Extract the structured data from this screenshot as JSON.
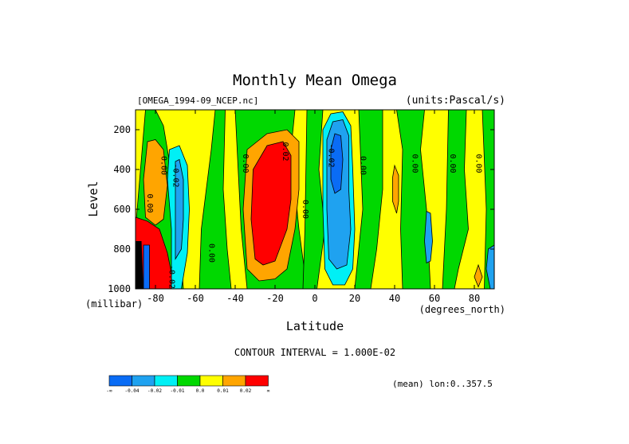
{
  "chart_data": {
    "type": "heatmap",
    "title": "Monthly Mean Omega",
    "dataset_label": "[OMEGA_1994-09_NCEP.nc]",
    "units_label": "(units:Pascal/s)",
    "xlabel": "Latitude",
    "x_units": "(degrees_north)",
    "ylabel": "Level",
    "y_units": "(millibar)",
    "xlim": [
      -90,
      90
    ],
    "ylim": [
      1000,
      100
    ],
    "x_ticks": [
      -80,
      -60,
      -40,
      -20,
      0,
      20,
      40,
      60,
      80
    ],
    "x_tick_labels": [
      "-80",
      "-60",
      "-40",
      "-20",
      "0",
      "20",
      "40",
      "60",
      "80"
    ],
    "y_ticks": [
      200,
      400,
      600,
      800,
      1000
    ],
    "y_tick_labels": [
      "200",
      "400",
      "600",
      "800",
      "1000"
    ],
    "contour_interval_text": "CONTOUR INTERVAL = 1.000E-02",
    "mean_text": "(mean) lon:0..357.5",
    "colorbar": {
      "colors": [
        "#0a6cf5",
        "#1fa2f0",
        "#00f0f5",
        "#00d800",
        "#ffff00",
        "#ffa500",
        "#ff0000"
      ],
      "labels": [
        "-∞",
        "-0.04",
        "-0.02",
        "-0.01",
        "0.0",
        "0.01",
        "0.02",
        "∞"
      ]
    },
    "contour_labels": [
      {
        "text": "0.00",
        "lat": -77,
        "lev": 380
      },
      {
        "text": "0.00",
        "lat": -84,
        "lev": 570
      },
      {
        "text": "-0.02",
        "lat": -71,
        "lev": 430
      },
      {
        "text": "0.00",
        "lat": -53,
        "lev": 820
      },
      {
        "text": "-0.02",
        "lat": -73,
        "lev": 940
      },
      {
        "text": "0.00",
        "lat": -36,
        "lev": 370
      },
      {
        "text": "0.02",
        "lat": -16,
        "lev": 310
      },
      {
        "text": "0.00",
        "lat": -6,
        "lev": 600
      },
      {
        "text": "-0.02",
        "lat": 7,
        "lev": 330
      },
      {
        "text": "0.00",
        "lat": 23,
        "lev": 380
      },
      {
        "text": "0.00",
        "lat": 49,
        "lev": 370
      },
      {
        "text": "0.00",
        "lat": 68,
        "lev": 370
      },
      {
        "text": "0.00",
        "lat": 81,
        "lev": 370
      }
    ],
    "regions": [
      {
        "level": 4,
        "points": [
          [
            -90,
            100
          ],
          [
            -84,
            100
          ],
          [
            -84,
            1000
          ],
          [
            -90,
            1000
          ]
        ]
      },
      {
        "level": 4,
        "points": [
          [
            -90,
            650
          ],
          [
            -83,
            680
          ],
          [
            -78,
            820
          ],
          [
            -77,
            1000
          ],
          [
            -90,
            1000
          ]
        ]
      },
      {
        "level": 3,
        "points": [
          [
            -85,
            100
          ],
          [
            -80,
            100
          ],
          [
            -76,
            180
          ],
          [
            -72,
            420
          ],
          [
            -68,
            700
          ],
          [
            -66,
            1000
          ],
          [
            -90,
            1000
          ],
          [
            -90,
            700
          ]
        ]
      },
      {
        "level": 3,
        "points": [
          [
            -50,
            100
          ],
          [
            -45,
            100
          ],
          [
            -46,
            500
          ],
          [
            -44,
            800
          ],
          [
            -42,
            1000
          ],
          [
            -58,
            1000
          ],
          [
            -57,
            700
          ],
          [
            -52,
            300
          ]
        ]
      },
      {
        "level": 3,
        "points": [
          [
            -40,
            100
          ],
          [
            -10,
            100
          ],
          [
            -12,
            300
          ],
          [
            -8,
            700
          ],
          [
            -4,
            1000
          ],
          [
            -34,
            1000
          ],
          [
            -37,
            700
          ]
        ]
      },
      {
        "level": 3,
        "points": [
          [
            -4,
            100
          ],
          [
            4,
            100
          ],
          [
            2,
            400
          ],
          [
            5,
            700
          ],
          [
            1,
            1000
          ],
          [
            -6,
            1000
          ],
          [
            -5,
            700
          ]
        ]
      },
      {
        "level": 3,
        "points": [
          [
            22,
            100
          ],
          [
            34,
            100
          ],
          [
            34,
            500
          ],
          [
            31,
            800
          ],
          [
            28,
            1000
          ],
          [
            20,
            1000
          ],
          [
            24,
            600
          ]
        ]
      },
      {
        "level": 3,
        "points": [
          [
            41,
            100
          ],
          [
            55,
            100
          ],
          [
            53,
            300
          ],
          [
            56,
            600
          ],
          [
            58,
            1000
          ],
          [
            44,
            1000
          ],
          [
            43,
            700
          ],
          [
            44,
            300
          ]
        ]
      },
      {
        "level": 3,
        "points": [
          [
            67,
            100
          ],
          [
            76,
            100
          ],
          [
            75,
            400
          ],
          [
            77,
            700
          ],
          [
            72,
            900
          ],
          [
            70,
            1000
          ],
          [
            64,
            1000
          ],
          [
            66,
            600
          ]
        ]
      },
      {
        "level": 3,
        "points": [
          [
            84,
            100
          ],
          [
            90,
            100
          ],
          [
            90,
            1000
          ],
          [
            85,
            1000
          ],
          [
            86,
            600
          ]
        ]
      },
      {
        "level": 5,
        "points": [
          [
            -84,
            260
          ],
          [
            -80,
            250
          ],
          [
            -76,
            300
          ],
          [
            -74,
            480
          ],
          [
            -76,
            650
          ],
          [
            -80,
            680
          ],
          [
            -85,
            640
          ],
          [
            -86,
            450
          ]
        ]
      },
      {
        "level": 2,
        "points": [
          [
            -73,
            300
          ],
          [
            -68,
            280
          ],
          [
            -64,
            380
          ],
          [
            -63,
            600
          ],
          [
            -64,
            820
          ],
          [
            -67,
            1000
          ],
          [
            -72,
            1000
          ],
          [
            -72,
            700
          ],
          [
            -74,
            450
          ]
        ]
      },
      {
        "level": 1,
        "points": [
          [
            -70,
            360
          ],
          [
            -68,
            350
          ],
          [
            -66,
            450
          ],
          [
            -66,
            650
          ],
          [
            -67,
            800
          ],
          [
            -70,
            850
          ],
          [
            -70,
            600
          ]
        ]
      },
      {
        "level": 5,
        "points": [
          [
            -34,
            300
          ],
          [
            -24,
            220
          ],
          [
            -14,
            200
          ],
          [
            -8,
            260
          ],
          [
            -8,
            500
          ],
          [
            -10,
            700
          ],
          [
            -14,
            900
          ],
          [
            -20,
            950
          ],
          [
            -28,
            960
          ],
          [
            -34,
            900
          ],
          [
            -36,
            600
          ]
        ]
      },
      {
        "level": 6,
        "points": [
          [
            -31,
            400
          ],
          [
            -24,
            280
          ],
          [
            -16,
            260
          ],
          [
            -12,
            330
          ],
          [
            -12,
            550
          ],
          [
            -14,
            700
          ],
          [
            -20,
            860
          ],
          [
            -26,
            880
          ],
          [
            -30,
            850
          ],
          [
            -32,
            650
          ]
        ]
      },
      {
        "level": 2,
        "points": [
          [
            4,
            200
          ],
          [
            8,
            120
          ],
          [
            14,
            110
          ],
          [
            18,
            180
          ],
          [
            19,
            400
          ],
          [
            20,
            700
          ],
          [
            19,
            900
          ],
          [
            15,
            980
          ],
          [
            9,
            980
          ],
          [
            5,
            900
          ],
          [
            4,
            600
          ]
        ]
      },
      {
        "level": 1,
        "points": [
          [
            6,
            250
          ],
          [
            9,
            160
          ],
          [
            14,
            150
          ],
          [
            17,
            230
          ],
          [
            17,
            500
          ],
          [
            18,
            700
          ],
          [
            16,
            880
          ],
          [
            11,
            900
          ],
          [
            7,
            850
          ],
          [
            6,
            600
          ]
        ]
      },
      {
        "level": 0,
        "points": [
          [
            8,
            300
          ],
          [
            10,
            220
          ],
          [
            13,
            230
          ],
          [
            14,
            350
          ],
          [
            13,
            500
          ],
          [
            10,
            520
          ],
          [
            8,
            450
          ]
        ]
      },
      {
        "level": 5,
        "points": [
          [
            40,
            380
          ],
          [
            42,
            430
          ],
          [
            42,
            560
          ],
          [
            41,
            620
          ],
          [
            39,
            560
          ],
          [
            39,
            440
          ]
        ]
      },
      {
        "level": 1,
        "points": [
          [
            56,
            610
          ],
          [
            58,
            620
          ],
          [
            59,
            760
          ],
          [
            58,
            860
          ],
          [
            56,
            870
          ],
          [
            55,
            760
          ]
        ]
      },
      {
        "level": 1,
        "points": [
          [
            87,
            800
          ],
          [
            90,
            780
          ],
          [
            90,
            1000
          ],
          [
            88,
            1000
          ],
          [
            86,
            900
          ]
        ]
      },
      {
        "level": 5,
        "points": [
          [
            82,
            880
          ],
          [
            84,
            940
          ],
          [
            82,
            990
          ],
          [
            80,
            940
          ]
        ]
      },
      {
        "level": 6,
        "points": [
          [
            -90,
            640
          ],
          [
            -84,
            660
          ],
          [
            -78,
            700
          ],
          [
            -74,
            820
          ],
          [
            -72,
            920
          ],
          [
            -72,
            1000
          ],
          [
            -90,
            1000
          ]
        ]
      },
      {
        "level": 0,
        "points": [
          [
            -86,
            780
          ],
          [
            -83,
            780
          ],
          [
            -83,
            1000
          ],
          [
            -86,
            1000
          ]
        ]
      }
    ]
  }
}
